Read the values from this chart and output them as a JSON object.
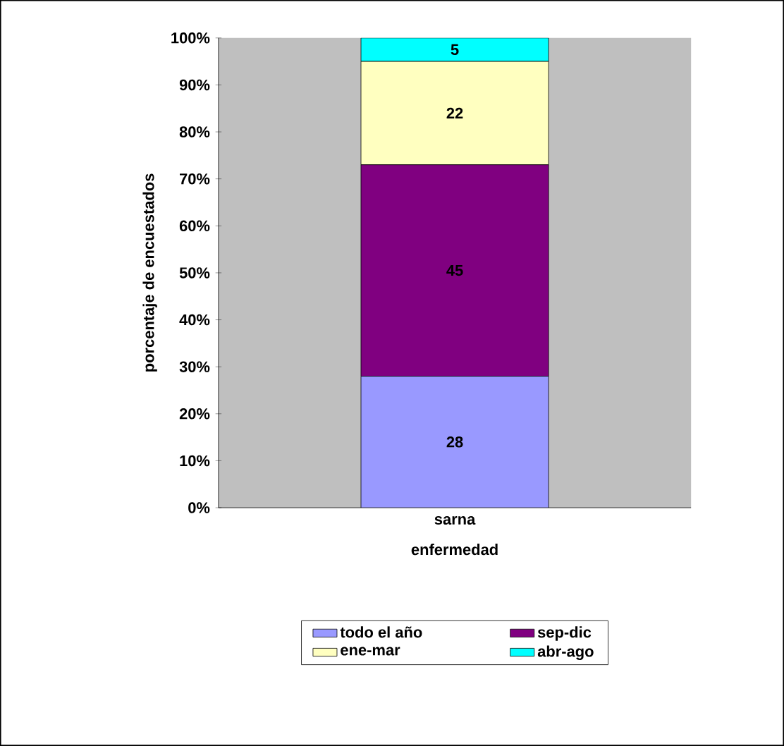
{
  "chart_data": {
    "type": "bar",
    "stacked": true,
    "xlabel": "enfermedad",
    "ylabel": "porcentaje de encuestados",
    "categories": [
      "sarna"
    ],
    "series": [
      {
        "name": "todo el año",
        "color": "#9999ff",
        "values": [
          28
        ]
      },
      {
        "name": "sep-dic",
        "color": "#800080",
        "values": [
          45
        ]
      },
      {
        "name": "ene-mar",
        "color": "#ffffc0",
        "values": [
          22
        ]
      },
      {
        "name": "abr-ago",
        "color": "#00ffff",
        "values": [
          5
        ]
      }
    ],
    "ylim": [
      0,
      100
    ],
    "yticks": [
      {
        "value": 0,
        "label": "0%"
      },
      {
        "value": 10,
        "label": "10%"
      },
      {
        "value": 20,
        "label": "20%"
      },
      {
        "value": 30,
        "label": "30%"
      },
      {
        "value": 40,
        "label": "40%"
      },
      {
        "value": 50,
        "label": "50%"
      },
      {
        "value": 60,
        "label": "60%"
      },
      {
        "value": 70,
        "label": "70%"
      },
      {
        "value": 80,
        "label": "80%"
      },
      {
        "value": 90,
        "label": "90%"
      },
      {
        "value": 100,
        "label": "100%"
      }
    ],
    "data_labels": true,
    "grid": false,
    "legend": "bottom"
  }
}
